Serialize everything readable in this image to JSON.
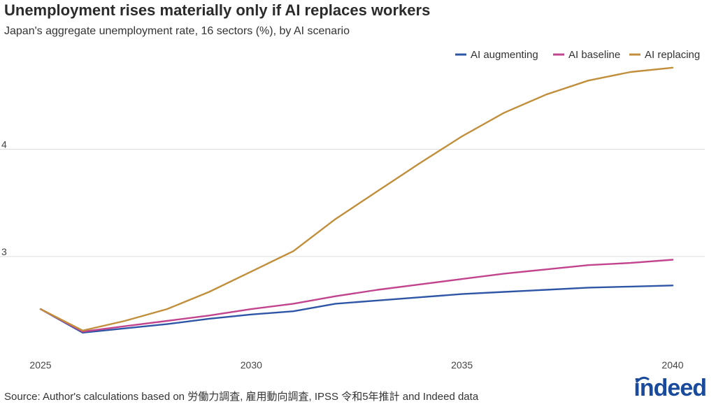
{
  "header": {
    "title": "Unemployment rises materially only if AI replaces workers",
    "subtitle": "Japan's aggregate unemployment rate, 16 sectors (%), by AI scenario"
  },
  "footer": {
    "source": "Source: Author's calculations based on 労働力調査, 雇用動向調査, IPSS 令和5年推計 and Indeed data",
    "logo_text": "indeed"
  },
  "chart_data": {
    "type": "line",
    "title": "Unemployment rises materially only if AI replaces workers",
    "subtitle": "Japan's aggregate unemployment rate, 16 sectors (%), by AI scenario",
    "xlabel": "",
    "ylabel": "",
    "xlim": [
      2025,
      2040
    ],
    "ylim": [
      2.1,
      5.0
    ],
    "x_ticks": [
      2025,
      2030,
      2035,
      2040
    ],
    "y_ticks": [
      3,
      4
    ],
    "grid": "horizontal",
    "legend_position": "top-right",
    "x": [
      2025,
      2026,
      2027,
      2028,
      2029,
      2030,
      2031,
      2032,
      2033,
      2034,
      2035,
      2036,
      2037,
      2038,
      2039,
      2040
    ],
    "series": [
      {
        "name": "AI augmenting",
        "color": "#2f56a6",
        "values": [
          2.51,
          2.29,
          2.33,
          2.37,
          2.42,
          2.46,
          2.49,
          2.56,
          2.59,
          2.62,
          2.65,
          2.67,
          2.69,
          2.71,
          2.72,
          2.73
        ]
      },
      {
        "name": "AI baseline",
        "color": "#c2448f",
        "values": [
          2.51,
          2.3,
          2.35,
          2.4,
          2.45,
          2.51,
          2.56,
          2.63,
          2.69,
          2.74,
          2.79,
          2.84,
          2.88,
          2.92,
          2.94,
          2.97
        ]
      },
      {
        "name": "AI replacing",
        "color": "#c18f3b",
        "values": [
          2.51,
          2.31,
          2.4,
          2.51,
          2.67,
          2.86,
          3.05,
          3.35,
          3.61,
          3.87,
          4.12,
          4.34,
          4.51,
          4.64,
          4.72,
          4.76
        ]
      }
    ]
  }
}
